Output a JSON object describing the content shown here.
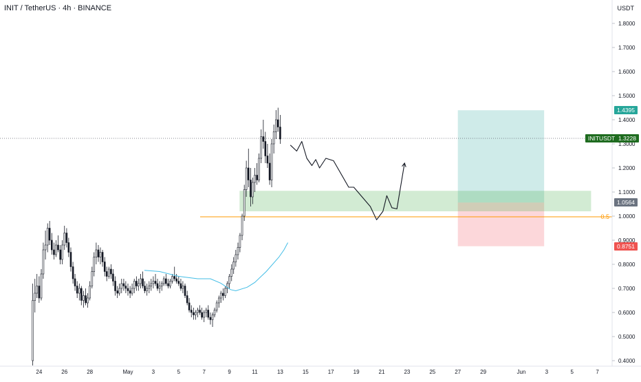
{
  "header": {
    "symbol_title": "INIT / TetherUS · 4h · BINANCE",
    "currency": "USDT"
  },
  "chart_data": {
    "type": "candlestick",
    "symbol": "INIT / TetherUS",
    "interval": "4h",
    "exchange": "BINANCE",
    "ylim": [
      0.38,
      1.9
    ],
    "y_ticks": [
      "0.4000",
      "0.5000",
      "0.6000",
      "0.7000",
      "0.8000",
      "0.9000",
      "1.0000",
      "1.1000",
      "1.2000",
      "1.3000",
      "1.4000",
      "1.5000",
      "1.6000",
      "1.7000",
      "1.8000"
    ],
    "y_tick_values": [
      0.4,
      0.5,
      0.6,
      0.7,
      0.8,
      0.9,
      1.0,
      1.1,
      1.2,
      1.3,
      1.4,
      1.5,
      1.6,
      1.7,
      1.8
    ],
    "x_ticks": [
      "24",
      "26",
      "28",
      "May",
      "3",
      "5",
      "7",
      "9",
      "11",
      "13",
      "15",
      "17",
      "19",
      "21",
      "23",
      "25",
      "27",
      "29",
      "Jun",
      "3",
      "5",
      "7"
    ],
    "x_tick_days": [
      -7,
      -5,
      -3,
      0,
      2,
      4,
      6,
      8,
      10,
      12,
      14,
      16,
      18,
      20,
      22,
      24,
      26,
      28,
      31,
      33,
      35,
      37
    ],
    "price_labels": {
      "target": "1.4395",
      "current_symbol": "INITUSDT",
      "current": "1.3228",
      "entry": "1.0564",
      "stop": "0.8751"
    },
    "levels": {
      "target": 1.4395,
      "current": 1.3228,
      "entry": 1.0564,
      "stop": 0.8751,
      "fib": 0.997,
      "fib_label": "0.5"
    },
    "support_zone": {
      "from_day": 8.8,
      "to_day": 36.5,
      "low": 1.02,
      "high": 1.105
    },
    "position_box": {
      "from_day": 26,
      "to_day": 32.8
    },
    "moving_average": [
      [
        1.3,
        0.775
      ],
      [
        2.5,
        0.77
      ],
      [
        4,
        0.75
      ],
      [
        5.5,
        0.74
      ],
      [
        6.5,
        0.74
      ],
      [
        7.3,
        0.722
      ],
      [
        8.1,
        0.695
      ],
      [
        8.5,
        0.69
      ],
      [
        9.4,
        0.705
      ],
      [
        10,
        0.725
      ],
      [
        10.9,
        0.77
      ],
      [
        11.9,
        0.83
      ],
      [
        12.3,
        0.86
      ],
      [
        12.6,
        0.89
      ]
    ],
    "projection_path": [
      [
        12.8,
        1.295
      ],
      [
        13.3,
        1.27
      ],
      [
        13.7,
        1.31
      ],
      [
        14.1,
        1.24
      ],
      [
        14.5,
        1.21
      ],
      [
        14.8,
        1.235
      ],
      [
        15.1,
        1.2
      ],
      [
        15.6,
        1.24
      ],
      [
        16.2,
        1.23
      ],
      [
        17.4,
        1.12
      ],
      [
        17.8,
        1.12
      ],
      [
        19.1,
        1.04
      ],
      [
        19.6,
        0.985
      ],
      [
        20.1,
        1.02
      ],
      [
        20.4,
        1.085
      ],
      [
        20.8,
        1.035
      ],
      [
        21.2,
        1.03
      ],
      [
        21.8,
        1.22
      ]
    ],
    "candles": [
      [
        -7.5,
        0.4,
        0.72,
        0.38,
        0.65
      ],
      [
        -7.33,
        0.65,
        0.74,
        0.6,
        0.68
      ],
      [
        -7.17,
        0.68,
        0.76,
        0.66,
        0.71
      ],
      [
        -7.0,
        0.71,
        0.75,
        0.64,
        0.66
      ],
      [
        -6.83,
        0.66,
        0.78,
        0.65,
        0.76
      ],
      [
        -6.67,
        0.76,
        0.89,
        0.74,
        0.86
      ],
      [
        -6.5,
        0.86,
        0.94,
        0.82,
        0.88
      ],
      [
        -6.33,
        0.88,
        0.97,
        0.85,
        0.95
      ],
      [
        -6.17,
        0.95,
        0.98,
        0.88,
        0.9
      ],
      [
        -6.0,
        0.9,
        0.93,
        0.84,
        0.86
      ],
      [
        -5.83,
        0.86,
        0.89,
        0.82,
        0.84
      ],
      [
        -5.67,
        0.84,
        0.9,
        0.83,
        0.88
      ],
      [
        -5.5,
        0.88,
        0.92,
        0.85,
        0.86
      ],
      [
        -5.33,
        0.86,
        0.88,
        0.8,
        0.82
      ],
      [
        -5.17,
        0.82,
        0.9,
        0.8,
        0.88
      ],
      [
        -5.0,
        0.88,
        0.96,
        0.86,
        0.93
      ],
      [
        -4.83,
        0.93,
        0.95,
        0.87,
        0.89
      ],
      [
        -4.67,
        0.89,
        0.91,
        0.83,
        0.85
      ],
      [
        -4.5,
        0.85,
        0.87,
        0.77,
        0.79
      ],
      [
        -4.33,
        0.79,
        0.81,
        0.72,
        0.74
      ],
      [
        -4.17,
        0.74,
        0.76,
        0.69,
        0.71
      ],
      [
        -4.0,
        0.71,
        0.73,
        0.66,
        0.68
      ],
      [
        -3.83,
        0.68,
        0.72,
        0.65,
        0.7
      ],
      [
        -3.67,
        0.7,
        0.71,
        0.63,
        0.65
      ],
      [
        -3.5,
        0.65,
        0.69,
        0.62,
        0.67
      ],
      [
        -3.33,
        0.67,
        0.7,
        0.63,
        0.64
      ],
      [
        -3.17,
        0.64,
        0.68,
        0.62,
        0.66
      ],
      [
        -3.0,
        0.66,
        0.73,
        0.65,
        0.71
      ],
      [
        -2.83,
        0.71,
        0.79,
        0.7,
        0.77
      ],
      [
        -2.67,
        0.77,
        0.85,
        0.75,
        0.83
      ],
      [
        -2.5,
        0.83,
        0.89,
        0.8,
        0.86
      ],
      [
        -2.33,
        0.86,
        0.88,
        0.81,
        0.83
      ],
      [
        -2.17,
        0.83,
        0.87,
        0.8,
        0.85
      ],
      [
        -2.0,
        0.85,
        0.86,
        0.79,
        0.81
      ],
      [
        -1.83,
        0.81,
        0.83,
        0.75,
        0.77
      ],
      [
        -1.67,
        0.77,
        0.79,
        0.73,
        0.75
      ],
      [
        -1.5,
        0.75,
        0.79,
        0.74,
        0.78
      ],
      [
        -1.33,
        0.78,
        0.8,
        0.74,
        0.76
      ],
      [
        -1.17,
        0.76,
        0.78,
        0.71,
        0.73
      ],
      [
        -1.0,
        0.73,
        0.75,
        0.67,
        0.69
      ],
      [
        -0.83,
        0.69,
        0.71,
        0.66,
        0.68
      ],
      [
        -0.67,
        0.68,
        0.72,
        0.67,
        0.7
      ],
      [
        -0.5,
        0.7,
        0.74,
        0.68,
        0.72
      ],
      [
        -0.33,
        0.72,
        0.74,
        0.69,
        0.71
      ],
      [
        -0.17,
        0.71,
        0.73,
        0.68,
        0.7
      ],
      [
        0.0,
        0.7,
        0.72,
        0.67,
        0.69
      ],
      [
        0.17,
        0.69,
        0.71,
        0.66,
        0.68
      ],
      [
        0.33,
        0.68,
        0.72,
        0.67,
        0.7
      ],
      [
        0.5,
        0.7,
        0.74,
        0.68,
        0.73
      ],
      [
        0.67,
        0.73,
        0.75,
        0.69,
        0.71
      ],
      [
        0.83,
        0.71,
        0.74,
        0.69,
        0.72
      ],
      [
        1.0,
        0.72,
        0.76,
        0.7,
        0.74
      ],
      [
        1.17,
        0.74,
        0.77,
        0.7,
        0.71
      ],
      [
        1.33,
        0.71,
        0.73,
        0.68,
        0.69
      ],
      [
        1.5,
        0.69,
        0.72,
        0.67,
        0.7
      ],
      [
        1.67,
        0.7,
        0.73,
        0.68,
        0.71
      ],
      [
        1.83,
        0.71,
        0.74,
        0.69,
        0.72
      ],
      [
        2.0,
        0.72,
        0.75,
        0.7,
        0.73
      ],
      [
        2.17,
        0.73,
        0.76,
        0.71,
        0.72
      ],
      [
        2.33,
        0.72,
        0.74,
        0.69,
        0.7
      ],
      [
        2.5,
        0.7,
        0.73,
        0.68,
        0.71
      ],
      [
        2.67,
        0.71,
        0.73,
        0.69,
        0.72
      ],
      [
        2.83,
        0.72,
        0.75,
        0.71,
        0.74
      ],
      [
        3.0,
        0.74,
        0.76,
        0.71,
        0.72
      ],
      [
        3.17,
        0.72,
        0.74,
        0.7,
        0.71
      ],
      [
        3.33,
        0.71,
        0.74,
        0.7,
        0.73
      ],
      [
        3.5,
        0.73,
        0.76,
        0.72,
        0.75
      ],
      [
        3.67,
        0.75,
        0.79,
        0.73,
        0.74
      ],
      [
        3.83,
        0.74,
        0.76,
        0.72,
        0.73
      ],
      [
        4.0,
        0.73,
        0.75,
        0.71,
        0.72
      ],
      [
        4.17,
        0.72,
        0.74,
        0.69,
        0.7
      ],
      [
        4.33,
        0.7,
        0.73,
        0.68,
        0.71
      ],
      [
        4.5,
        0.71,
        0.72,
        0.66,
        0.67
      ],
      [
        4.67,
        0.67,
        0.69,
        0.63,
        0.64
      ],
      [
        4.83,
        0.64,
        0.66,
        0.6,
        0.61
      ],
      [
        5.0,
        0.61,
        0.63,
        0.58,
        0.6
      ],
      [
        5.17,
        0.6,
        0.62,
        0.57,
        0.59
      ],
      [
        5.33,
        0.59,
        0.61,
        0.57,
        0.6
      ],
      [
        5.5,
        0.6,
        0.62,
        0.58,
        0.61
      ],
      [
        5.67,
        0.61,
        0.63,
        0.59,
        0.6
      ],
      [
        5.83,
        0.6,
        0.62,
        0.57,
        0.58
      ],
      [
        6.0,
        0.58,
        0.61,
        0.56,
        0.6
      ],
      [
        6.17,
        0.6,
        0.62,
        0.58,
        0.61
      ],
      [
        6.33,
        0.61,
        0.63,
        0.57,
        0.58
      ],
      [
        6.5,
        0.58,
        0.6,
        0.55,
        0.57
      ],
      [
        6.67,
        0.57,
        0.6,
        0.54,
        0.59
      ],
      [
        6.83,
        0.59,
        0.62,
        0.58,
        0.61
      ],
      [
        7.0,
        0.61,
        0.65,
        0.6,
        0.64
      ],
      [
        7.17,
        0.64,
        0.67,
        0.62,
        0.66
      ],
      [
        7.33,
        0.66,
        0.69,
        0.64,
        0.68
      ],
      [
        7.5,
        0.68,
        0.7,
        0.65,
        0.67
      ],
      [
        7.67,
        0.67,
        0.71,
        0.66,
        0.7
      ],
      [
        7.83,
        0.7,
        0.73,
        0.68,
        0.72
      ],
      [
        8.0,
        0.72,
        0.76,
        0.7,
        0.75
      ],
      [
        8.17,
        0.75,
        0.8,
        0.73,
        0.78
      ],
      [
        8.33,
        0.78,
        0.83,
        0.76,
        0.81
      ],
      [
        8.5,
        0.81,
        0.86,
        0.79,
        0.84
      ],
      [
        8.67,
        0.84,
        0.89,
        0.82,
        0.87
      ],
      [
        8.83,
        0.87,
        0.93,
        0.85,
        0.92
      ],
      [
        9.0,
        0.92,
        1.01,
        0.9,
        1.0
      ],
      [
        9.17,
        1.0,
        1.13,
        0.98,
        1.11
      ],
      [
        9.33,
        1.11,
        1.23,
        1.08,
        1.2
      ],
      [
        9.5,
        1.2,
        1.28,
        1.12,
        1.15
      ],
      [
        9.67,
        1.15,
        1.2,
        1.04,
        1.08
      ],
      [
        9.83,
        1.08,
        1.16,
        1.05,
        1.14
      ],
      [
        10.0,
        1.14,
        1.2,
        1.1,
        1.17
      ],
      [
        10.17,
        1.17,
        1.22,
        1.13,
        1.15
      ],
      [
        10.33,
        1.15,
        1.26,
        1.14,
        1.24
      ],
      [
        10.5,
        1.24,
        1.36,
        1.22,
        1.33
      ],
      [
        10.67,
        1.33,
        1.4,
        1.28,
        1.31
      ],
      [
        10.83,
        1.31,
        1.35,
        1.22,
        1.25
      ],
      [
        11.0,
        1.25,
        1.3,
        1.2,
        1.22
      ],
      [
        11.17,
        1.22,
        1.26,
        1.13,
        1.15
      ],
      [
        11.33,
        1.15,
        1.32,
        1.12,
        1.3
      ],
      [
        11.5,
        1.3,
        1.38,
        1.26,
        1.35
      ],
      [
        11.67,
        1.35,
        1.44,
        1.32,
        1.4
      ],
      [
        11.83,
        1.4,
        1.45,
        1.35,
        1.37
      ],
      [
        12.0,
        1.37,
        1.42,
        1.3,
        1.32
      ]
    ]
  }
}
